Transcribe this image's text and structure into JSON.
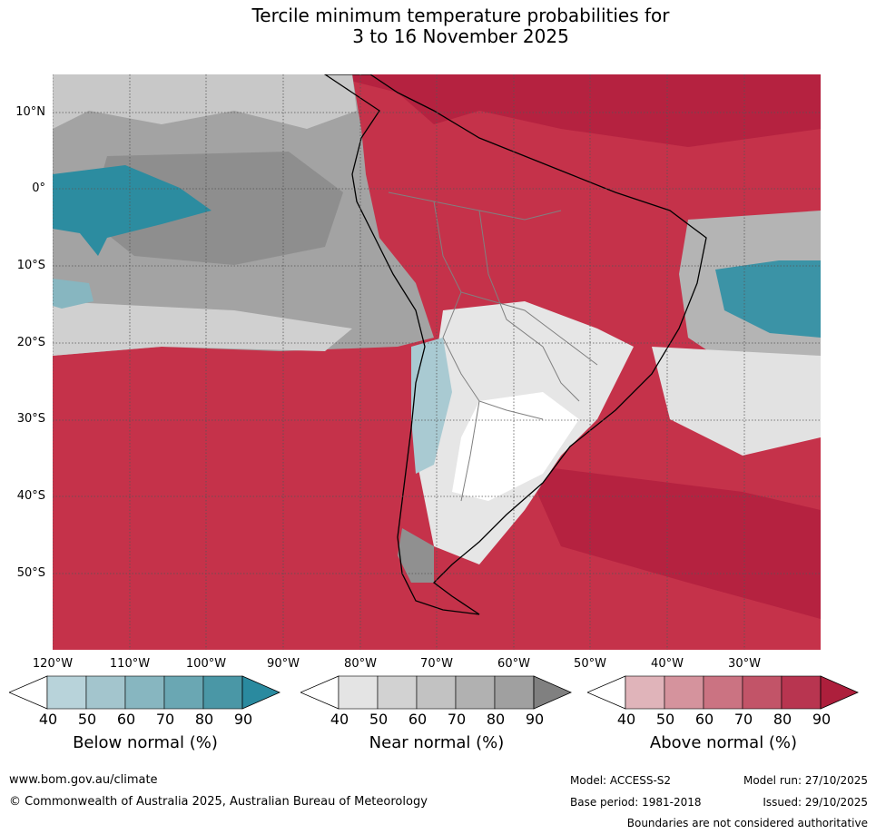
{
  "title": {
    "line1": "Tercile minimum temperature probabilities for",
    "line2": "3 to 16 November 2025"
  },
  "lat_labels": [
    "10°N",
    "0°",
    "10°S",
    "20°S",
    "30°S",
    "40°S",
    "50°S"
  ],
  "lon_labels": [
    "120°W",
    "110°W",
    "100°W",
    "90°W",
    "80°W",
    "70°W",
    "60°W",
    "50°W",
    "40°W",
    "30°W"
  ],
  "legend": {
    "below": {
      "label": "Below normal (%)",
      "ticks": [
        "40",
        "50",
        "60",
        "70",
        "80",
        "90"
      ],
      "colors": [
        "#ffffff",
        "#b8d3da",
        "#a3c5cd",
        "#87b6c0",
        "#6aa7b3",
        "#4a97a6",
        "#2a8a9f"
      ]
    },
    "near": {
      "label": "Near normal (%)",
      "ticks": [
        "40",
        "50",
        "60",
        "70",
        "80",
        "90"
      ],
      "colors": [
        "#ffffff",
        "#e4e4e4",
        "#d2d2d2",
        "#c2c2c2",
        "#b1b1b1",
        "#a0a0a0",
        "#808080"
      ]
    },
    "above": {
      "label": "Above normal (%)",
      "ticks": [
        "40",
        "50",
        "60",
        "70",
        "80",
        "90"
      ],
      "colors": [
        "#ffffff",
        "#e0b4ba",
        "#d5939d",
        "#cb7382",
        "#c25468",
        "#b83550",
        "#ad1f3c"
      ]
    }
  },
  "footer": {
    "url": "www.bom.gov.au/climate",
    "copyright": "© Commonwealth of Australia 2025, Australian Bureau of Meteorology",
    "model": "Model: ACCESS-S2",
    "base_period": "Base period: 1981-2018",
    "model_run": "Model run: 27/10/2025",
    "issued": "Issued: 29/10/2025",
    "disclaimer": "Boundaries are not considered authoritative"
  }
}
